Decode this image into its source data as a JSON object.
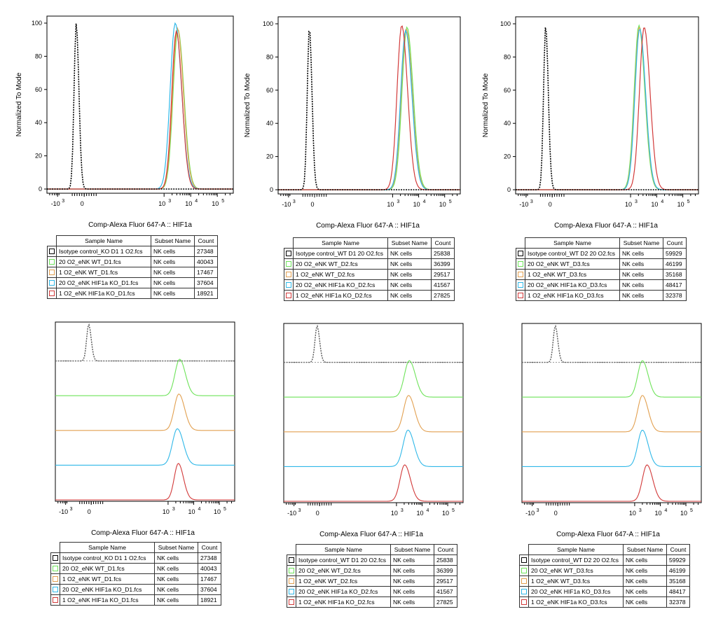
{
  "common": {
    "xlabel": "Comp-Alexa Fluor 647-A :: HIF1a",
    "ylabel": "Normalized To Mode",
    "table_headers": [
      "Sample Name",
      "Subset Name",
      "Count"
    ],
    "x_ticks": [
      "-10",
      "0",
      "10",
      "10",
      "10"
    ],
    "x_tick_exps": [
      "3",
      "",
      "3",
      "4",
      "5"
    ]
  },
  "chart_data": [
    {
      "type": "line",
      "title": "",
      "mode": "overlay",
      "xlabel": "Comp-Alexa Fluor 647-A :: HIF1a",
      "ylabel": "Normalized To Mode",
      "yticks": [
        0,
        20,
        40,
        60,
        80,
        100
      ],
      "ylim": [
        0,
        100
      ],
      "series": [
        {
          "name": "Isotype control_KO D1 1 O2.fcs",
          "subset": "NK cells",
          "count": "27348",
          "color": "#000000",
          "dashed": true,
          "center": -0.3,
          "width": 0.08,
          "peak": 100
        },
        {
          "name": "20 O2_eNK WT_D1.fcs",
          "subset": "NK cells",
          "count": "40043",
          "color": "#6ee35a",
          "center": 3.52,
          "width": 0.18,
          "peak": 96
        },
        {
          "name": "1 O2_eNK WT_D1.fcs",
          "subset": "NK cells",
          "count": "17467",
          "color": "#e2a050",
          "center": 3.5,
          "width": 0.18,
          "peak": 97
        },
        {
          "name": "20 O2_eNK HIF1a KO_D1.fcs",
          "subset": "NK cells",
          "count": "37604",
          "color": "#30b8e8",
          "center": 3.42,
          "width": 0.19,
          "peak": 100
        },
        {
          "name": "1 O2_eNK HIF1a KO_D1.fcs",
          "subset": "NK cells",
          "count": "18921",
          "color": "#d23a3a",
          "center": 3.46,
          "width": 0.17,
          "peak": 95
        }
      ]
    },
    {
      "type": "line",
      "title": "",
      "mode": "overlay",
      "xlabel": "Comp-Alexa Fluor 647-A :: HIF1a",
      "ylabel": "Normalized To Mode",
      "yticks": [
        0,
        20,
        40,
        60,
        80,
        100
      ],
      "ylim": [
        0,
        100
      ],
      "series": [
        {
          "name": "Isotype control_WT D1 20 O2.fcs",
          "subset": "NK cells",
          "count": "25838",
          "color": "#000000",
          "dashed": true,
          "center": -0.2,
          "width": 0.08,
          "peak": 98
        },
        {
          "name": "20 O2_eNK WT_D2.fcs",
          "subset": "NK cells",
          "count": "36399",
          "color": "#6ee35a",
          "center": 3.55,
          "width": 0.19,
          "peak": 98
        },
        {
          "name": "1 O2_eNK WT_D2.fcs",
          "subset": "NK cells",
          "count": "29517",
          "color": "#e2a050",
          "center": 3.52,
          "width": 0.19,
          "peak": 97
        },
        {
          "name": "20 O2_eNK HIF1a KO_D2.fcs",
          "subset": "NK cells",
          "count": "41567",
          "color": "#30b8e8",
          "center": 3.5,
          "width": 0.19,
          "peak": 96
        },
        {
          "name": "1 O2_eNK HIF1a KO_D2.fcs",
          "subset": "NK cells",
          "count": "27825",
          "color": "#d23a3a",
          "center": 3.35,
          "width": 0.18,
          "peak": 99
        }
      ]
    },
    {
      "type": "line",
      "title": "",
      "mode": "overlay",
      "xlabel": "Comp-Alexa Fluor 647-A :: HIF1a",
      "ylabel": "Normalized To Mode",
      "yticks": [
        0,
        20,
        40,
        60,
        80,
        100
      ],
      "ylim": [
        0,
        100
      ],
      "series": [
        {
          "name": "Isotype control_WT D2 20 O2.fcs",
          "subset": "NK cells",
          "count": "59929",
          "color": "#000000",
          "dashed": true,
          "center": -0.25,
          "width": 0.08,
          "peak": 99
        },
        {
          "name": "20 O2_eNK WT_D3.fcs",
          "subset": "NK cells",
          "count": "46199",
          "color": "#6ee35a",
          "center": 3.32,
          "width": 0.18,
          "peak": 99
        },
        {
          "name": "1 O2_eNK WT_D3.fcs",
          "subset": "NK cells",
          "count": "35168",
          "color": "#e2a050",
          "center": 3.34,
          "width": 0.18,
          "peak": 98
        },
        {
          "name": "20 O2_eNK HIF1a KO_D3.fcs",
          "subset": "NK cells",
          "count": "48417",
          "color": "#30b8e8",
          "center": 3.35,
          "width": 0.18,
          "peak": 97
        },
        {
          "name": "1 O2_eNK HIF1a KO_D3.fcs",
          "subset": "NK cells",
          "count": "32378",
          "color": "#d23a3a",
          "center": 3.52,
          "width": 0.18,
          "peak": 98
        }
      ]
    },
    {
      "type": "line",
      "title": "",
      "mode": "offset",
      "xlabel": "Comp-Alexa Fluor 647-A :: HIF1a",
      "series": [
        {
          "name": "Isotype control_KO D1 1 O2.fcs",
          "subset": "NK cells",
          "count": "27348",
          "color": "#555555",
          "dashed": true,
          "center": -0.1,
          "width": 0.08
        },
        {
          "name": "20 O2_eNK WT_D1.fcs",
          "subset": "NK cells",
          "count": "40043",
          "color": "#6ee35a",
          "center": 3.45,
          "width": 0.18
        },
        {
          "name": "1 O2_eNK WT_D1.fcs",
          "subset": "NK cells",
          "count": "17467",
          "color": "#e2a050",
          "center": 3.42,
          "width": 0.18
        },
        {
          "name": "20 O2_eNK HIF1a KO_D1.fcs",
          "subset": "NK cells",
          "count": "37604",
          "color": "#30b8e8",
          "center": 3.36,
          "width": 0.19
        },
        {
          "name": "1 O2_eNK HIF1a KO_D1.fcs",
          "subset": "NK cells",
          "count": "18921",
          "color": "#d23a3a",
          "center": 3.4,
          "width": 0.16
        }
      ]
    },
    {
      "type": "line",
      "title": "",
      "mode": "offset",
      "xlabel": "Comp-Alexa Fluor 647-A :: HIF1a",
      "series": [
        {
          "name": "Isotype control_WT D1 20 O2.fcs",
          "subset": "NK cells",
          "count": "25838",
          "color": "#555555",
          "dashed": true,
          "center": -0.1,
          "width": 0.08
        },
        {
          "name": "20 O2_eNK WT_D2.fcs",
          "subset": "NK cells",
          "count": "36399",
          "color": "#6ee35a",
          "center": 3.5,
          "width": 0.19
        },
        {
          "name": "1 O2_eNK WT_D2.fcs",
          "subset": "NK cells",
          "count": "29517",
          "color": "#e2a050",
          "center": 3.47,
          "width": 0.19
        },
        {
          "name": "20 O2_eNK HIF1a KO_D2.fcs",
          "subset": "NK cells",
          "count": "41567",
          "color": "#30b8e8",
          "center": 3.45,
          "width": 0.19
        },
        {
          "name": "1 O2_eNK HIF1a KO_D2.fcs",
          "subset": "NK cells",
          "count": "27825",
          "color": "#d23a3a",
          "center": 3.32,
          "width": 0.18
        }
      ]
    },
    {
      "type": "line",
      "title": "",
      "mode": "offset",
      "xlabel": "Comp-Alexa Fluor 647-A :: HIF1a",
      "series": [
        {
          "name": "Isotype control_WT D2 20 O2.fcs",
          "subset": "NK cells",
          "count": "59929",
          "color": "#555555",
          "dashed": true,
          "center": -0.1,
          "width": 0.08
        },
        {
          "name": "20 O2_eNK WT_D3.fcs",
          "subset": "NK cells",
          "count": "46199",
          "color": "#6ee35a",
          "center": 3.3,
          "width": 0.18
        },
        {
          "name": "1 O2_eNK WT_D3.fcs",
          "subset": "NK cells",
          "count": "35168",
          "color": "#e2a050",
          "center": 3.3,
          "width": 0.18
        },
        {
          "name": "20 O2_eNK HIF1a KO_D3.fcs",
          "subset": "NK cells",
          "count": "48417",
          "color": "#30b8e8",
          "center": 3.3,
          "width": 0.18
        },
        {
          "name": "1 O2_eNK HIF1a KO_D3.fcs",
          "subset": "NK cells",
          "count": "32378",
          "color": "#d23a3a",
          "center": 3.48,
          "width": 0.18
        }
      ]
    }
  ]
}
